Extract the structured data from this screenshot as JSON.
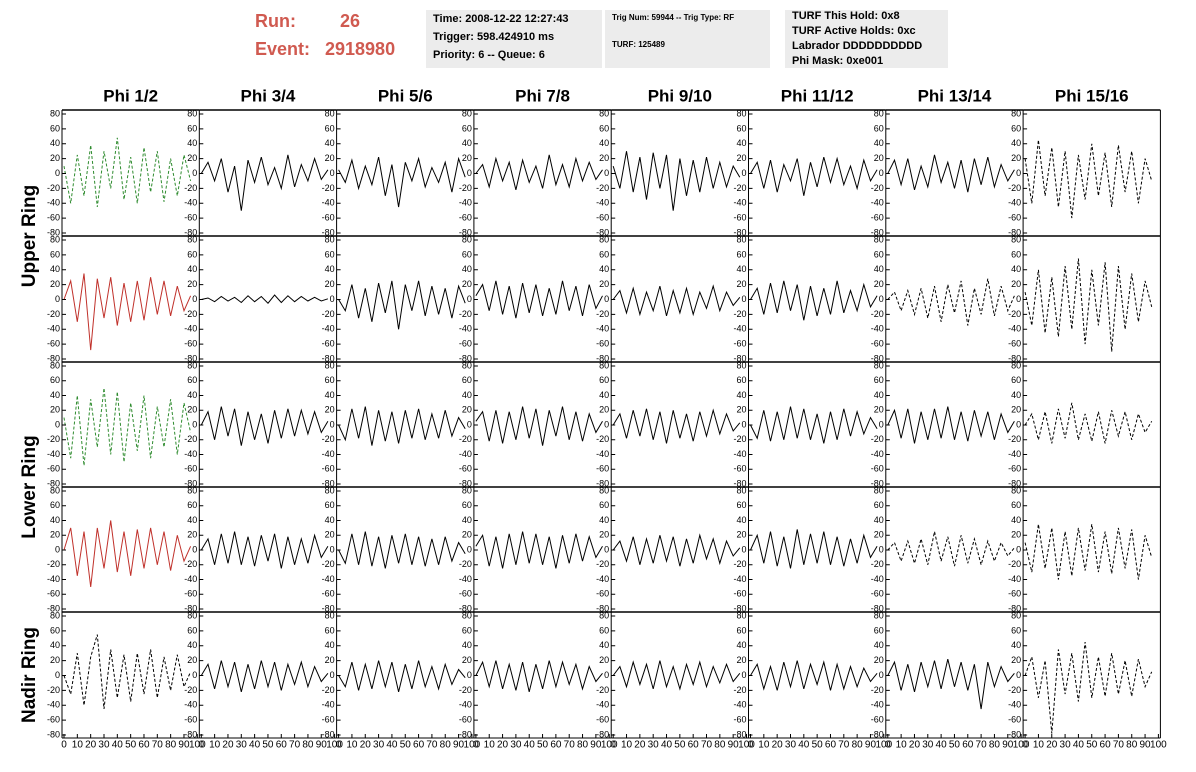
{
  "header": {
    "run_label": "Run:",
    "run": "26",
    "event_label": "Event:",
    "event": "2918980",
    "box1": [
      "Time: 2008-12-22 12:27:43",
      "Trigger: 598.424910 ms",
      "Priority: 6 -- Queue: 6"
    ],
    "box2": [
      "Trig Num: 59944 -- Trig Type: RF",
      "TURF: 125489"
    ],
    "box3": [
      "TURF This Hold: 0x8",
      "TURF Active Holds: 0xc",
      "Labrador DDDDDDDDDD",
      "Phi Mask: 0xe001"
    ]
  },
  "chart_data": {
    "type": "line",
    "columns": [
      "Phi 1/2",
      "Phi 3/4",
      "Phi 5/6",
      "Phi 7/8",
      "Phi 9/10",
      "Phi 11/12",
      "Phi 13/14",
      "Phi 15/16"
    ],
    "row_labels": [
      "Upper Ring",
      "Lower Ring",
      "Nadir Ring"
    ],
    "xlim": [
      0,
      100
    ],
    "ylim": [
      -80,
      80
    ],
    "xticks": [
      0,
      10,
      20,
      30,
      40,
      50,
      60,
      70,
      80,
      90,
      100
    ],
    "yticks": [
      -80,
      -60,
      -40,
      -20,
      0,
      20,
      40,
      60,
      80
    ],
    "x": [
      0,
      5,
      10,
      15,
      20,
      25,
      30,
      35,
      40,
      45,
      50,
      55,
      60,
      65,
      70,
      75,
      80,
      85,
      90,
      95
    ],
    "panels": [
      [
        {
          "color": "#2e8b2e",
          "style": "dashed",
          "values": [
            10,
            -40,
            25,
            -30,
            38,
            -45,
            30,
            -20,
            48,
            -35,
            22,
            -40,
            35,
            -25,
            30,
            -38,
            20,
            -30,
            25,
            -10
          ]
        },
        {
          "color": "#000000",
          "style": "solid",
          "values": [
            0,
            15,
            -10,
            20,
            -25,
            10,
            -50,
            18,
            -12,
            22,
            -15,
            8,
            -20,
            25,
            -18,
            12,
            -10,
            20,
            -8,
            5
          ]
        },
        {
          "color": "#000000",
          "style": "solid",
          "values": [
            5,
            -12,
            18,
            -20,
            10,
            -15,
            22,
            -30,
            12,
            -45,
            15,
            -10,
            20,
            -18,
            8,
            -12,
            15,
            -25,
            20,
            -5
          ]
        },
        {
          "color": "#000000",
          "style": "solid",
          "values": [
            0,
            12,
            -18,
            20,
            -10,
            15,
            -22,
            18,
            -12,
            10,
            -20,
            25,
            -15,
            12,
            -18,
            20,
            -10,
            15,
            -8,
            5
          ]
        },
        {
          "color": "#000000",
          "style": "solid",
          "values": [
            10,
            -20,
            30,
            -25,
            22,
            -35,
            28,
            -20,
            25,
            -50,
            20,
            -30,
            18,
            -25,
            22,
            -20,
            15,
            -18,
            10,
            -5
          ]
        },
        {
          "color": "#000000",
          "style": "solid",
          "values": [
            0,
            15,
            -20,
            18,
            -25,
            12,
            -10,
            20,
            -30,
            15,
            -18,
            22,
            -12,
            20,
            -15,
            10,
            -20,
            18,
            -10,
            5
          ]
        },
        {
          "color": "#000000",
          "style": "solid",
          "values": [
            0,
            18,
            -15,
            20,
            -22,
            10,
            -18,
            25,
            -12,
            15,
            -20,
            18,
            -25,
            20,
            -15,
            22,
            -18,
            12,
            -10,
            5
          ]
        },
        {
          "color": "#000000",
          "style": "dashed",
          "values": [
            20,
            -40,
            45,
            -30,
            35,
            -45,
            30,
            -60,
            25,
            -35,
            40,
            -30,
            28,
            -45,
            38,
            -25,
            30,
            -40,
            20,
            -10
          ]
        }
      ],
      [
        {
          "color": "#c0312b",
          "style": "solid",
          "values": [
            0,
            25,
            -30,
            35,
            -68,
            28,
            -25,
            30,
            -35,
            22,
            -30,
            25,
            -28,
            30,
            -20,
            25,
            -22,
            18,
            -15,
            5
          ]
        },
        {
          "color": "#000000",
          "style": "solid",
          "values": [
            0,
            2,
            -3,
            4,
            -2,
            3,
            -4,
            5,
            -3,
            4,
            -5,
            6,
            -4,
            5,
            -3,
            4,
            -2,
            3,
            -2,
            1
          ]
        },
        {
          "color": "#000000",
          "style": "solid",
          "values": [
            0,
            -15,
            20,
            -25,
            15,
            -30,
            22,
            -18,
            25,
            -40,
            20,
            -15,
            25,
            -22,
            18,
            -20,
            15,
            -25,
            18,
            -5
          ]
        },
        {
          "color": "#000000",
          "style": "solid",
          "values": [
            5,
            20,
            -15,
            25,
            -20,
            18,
            -25,
            22,
            -18,
            20,
            -22,
            15,
            -20,
            25,
            -15,
            18,
            -22,
            20,
            -12,
            5
          ]
        },
        {
          "color": "#000000",
          "style": "solid",
          "values": [
            0,
            12,
            -18,
            15,
            -20,
            10,
            -15,
            18,
            -22,
            12,
            -18,
            15,
            -20,
            10,
            -12,
            18,
            -15,
            10,
            -8,
            3
          ]
        },
        {
          "color": "#000000",
          "style": "solid",
          "values": [
            0,
            15,
            -20,
            22,
            -18,
            25,
            -15,
            20,
            -28,
            18,
            -22,
            15,
            -20,
            25,
            -18,
            12,
            -15,
            20,
            -10,
            5
          ]
        },
        {
          "color": "#000000",
          "style": "dashed",
          "values": [
            0,
            10,
            -15,
            12,
            -20,
            15,
            -25,
            18,
            -30,
            20,
            -18,
            25,
            -35,
            15,
            -20,
            28,
            -22,
            18,
            -15,
            5
          ]
        },
        {
          "color": "#000000",
          "style": "dashed",
          "values": [
            10,
            -35,
            40,
            -45,
            30,
            -50,
            45,
            -40,
            55,
            -60,
            40,
            -35,
            50,
            -70,
            45,
            -40,
            35,
            -30,
            25,
            -10
          ]
        }
      ],
      [
        {
          "color": "#2e8b2e",
          "style": "dashed",
          "values": [
            10,
            -45,
            40,
            -55,
            35,
            -30,
            50,
            -40,
            45,
            -50,
            30,
            -35,
            40,
            -45,
            25,
            -30,
            35,
            -40,
            30,
            -10
          ]
        },
        {
          "color": "#000000",
          "style": "solid",
          "values": [
            0,
            18,
            -20,
            25,
            -15,
            22,
            -28,
            18,
            -20,
            15,
            -25,
            20,
            -18,
            22,
            -15,
            20,
            -12,
            18,
            -10,
            5
          ]
        },
        {
          "color": "#000000",
          "style": "solid",
          "values": [
            0,
            -20,
            22,
            -18,
            25,
            -28,
            20,
            -22,
            18,
            -25,
            20,
            -18,
            22,
            -20,
            15,
            -18,
            20,
            -15,
            10,
            -5
          ]
        },
        {
          "color": "#000000",
          "style": "solid",
          "values": [
            5,
            18,
            -22,
            20,
            -25,
            18,
            -20,
            25,
            -18,
            22,
            -28,
            20,
            -15,
            25,
            -20,
            18,
            -22,
            15,
            -10,
            5
          ]
        },
        {
          "color": "#000000",
          "style": "solid",
          "values": [
            0,
            15,
            -18,
            20,
            -15,
            22,
            -20,
            18,
            -25,
            20,
            -18,
            15,
            -22,
            18,
            -15,
            20,
            -12,
            15,
            -8,
            3
          ]
        },
        {
          "color": "#000000",
          "style": "solid",
          "values": [
            0,
            -18,
            20,
            -22,
            18,
            -20,
            25,
            -18,
            22,
            -20,
            15,
            -25,
            18,
            -20,
            22,
            -15,
            18,
            -12,
            10,
            -5
          ]
        },
        {
          "color": "#000000",
          "style": "solid",
          "values": [
            0,
            20,
            -18,
            22,
            -25,
            18,
            -20,
            22,
            -18,
            25,
            -20,
            18,
            -22,
            20,
            -15,
            18,
            -20,
            15,
            -10,
            5
          ]
        },
        {
          "color": "#000000",
          "style": "dashed",
          "values": [
            0,
            15,
            -20,
            18,
            -25,
            22,
            -18,
            30,
            -20,
            15,
            -22,
            18,
            -25,
            20,
            -15,
            18,
            -20,
            15,
            -10,
            5
          ]
        }
      ],
      [
        {
          "color": "#c0312b",
          "style": "solid",
          "values": [
            0,
            30,
            -35,
            25,
            -50,
            30,
            -25,
            40,
            -30,
            25,
            -35,
            28,
            -25,
            30,
            -20,
            25,
            -28,
            20,
            -15,
            5
          ]
        },
        {
          "color": "#000000",
          "style": "solid",
          "values": [
            0,
            15,
            -20,
            22,
            -18,
            25,
            -20,
            18,
            -22,
            20,
            -15,
            22,
            -25,
            18,
            -20,
            15,
            -18,
            20,
            -10,
            5
          ]
        },
        {
          "color": "#000000",
          "style": "solid",
          "values": [
            0,
            -18,
            22,
            -20,
            25,
            -22,
            18,
            -25,
            20,
            -18,
            22,
            -20,
            18,
            -22,
            15,
            -20,
            18,
            -15,
            10,
            -5
          ]
        },
        {
          "color": "#000000",
          "style": "solid",
          "values": [
            5,
            20,
            -22,
            18,
            -25,
            22,
            -20,
            25,
            -18,
            22,
            -20,
            18,
            -25,
            20,
            -18,
            22,
            -15,
            18,
            -10,
            5
          ]
        },
        {
          "color": "#000000",
          "style": "solid",
          "values": [
            0,
            12,
            -15,
            18,
            -20,
            15,
            -18,
            20,
            -15,
            18,
            -22,
            15,
            -18,
            20,
            -12,
            15,
            -18,
            12,
            -8,
            3
          ]
        },
        {
          "color": "#000000",
          "style": "solid",
          "values": [
            0,
            20,
            -18,
            25,
            -22,
            18,
            -25,
            28,
            -20,
            22,
            -18,
            25,
            -20,
            18,
            -22,
            15,
            -18,
            20,
            -10,
            5
          ]
        },
        {
          "color": "#000000",
          "style": "dashed",
          "values": [
            0,
            10,
            -15,
            12,
            -18,
            15,
            -20,
            25,
            -15,
            18,
            -22,
            20,
            -18,
            15,
            -20,
            12,
            -15,
            10,
            -8,
            3
          ]
        },
        {
          "color": "#000000",
          "style": "dashed",
          "values": [
            10,
            -30,
            35,
            -25,
            30,
            -40,
            25,
            -35,
            30,
            -28,
            35,
            -30,
            25,
            -32,
            30,
            -25,
            28,
            -40,
            20,
            -10
          ]
        }
      ],
      [
        {
          "color": "#000000",
          "style": "dashed",
          "values": [
            0,
            -25,
            30,
            -40,
            25,
            55,
            -45,
            35,
            -30,
            28,
            -35,
            30,
            -25,
            35,
            -30,
            25,
            -20,
            28,
            -15,
            5
          ]
        },
        {
          "color": "#000000",
          "style": "solid",
          "values": [
            0,
            15,
            -18,
            20,
            -15,
            18,
            -22,
            15,
            -18,
            20,
            -15,
            18,
            -20,
            15,
            -12,
            18,
            -15,
            12,
            -8,
            3
          ]
        },
        {
          "color": "#000000",
          "style": "solid",
          "values": [
            0,
            -15,
            18,
            -20,
            15,
            -18,
            20,
            -15,
            18,
            -22,
            15,
            -18,
            20,
            -15,
            12,
            -18,
            15,
            -12,
            8,
            -3
          ]
        },
        {
          "color": "#000000",
          "style": "solid",
          "values": [
            0,
            18,
            -15,
            20,
            -18,
            15,
            -20,
            18,
            -22,
            15,
            -18,
            20,
            -15,
            18,
            -12,
            15,
            -18,
            12,
            -8,
            3
          ]
        },
        {
          "color": "#000000",
          "style": "solid",
          "values": [
            0,
            12,
            -15,
            18,
            -12,
            15,
            -18,
            20,
            -15,
            12,
            -18,
            15,
            -12,
            18,
            -15,
            12,
            -10,
            15,
            -8,
            3
          ]
        },
        {
          "color": "#000000",
          "style": "solid",
          "values": [
            0,
            15,
            -18,
            12,
            -20,
            18,
            -15,
            20,
            -18,
            15,
            -12,
            18,
            -20,
            15,
            -18,
            12,
            -15,
            10,
            -8,
            3
          ]
        },
        {
          "color": "#000000",
          "style": "solid",
          "values": [
            0,
            18,
            -20,
            15,
            -22,
            18,
            -15,
            20,
            -18,
            22,
            -15,
            18,
            -20,
            15,
            -45,
            18,
            -15,
            12,
            -8,
            3
          ]
        },
        {
          "color": "#000000",
          "style": "dashed",
          "values": [
            0,
            25,
            -30,
            20,
            -78,
            35,
            -25,
            30,
            -35,
            45,
            -30,
            25,
            -28,
            30,
            -25,
            20,
            -28,
            22,
            -15,
            5
          ]
        }
      ]
    ]
  }
}
